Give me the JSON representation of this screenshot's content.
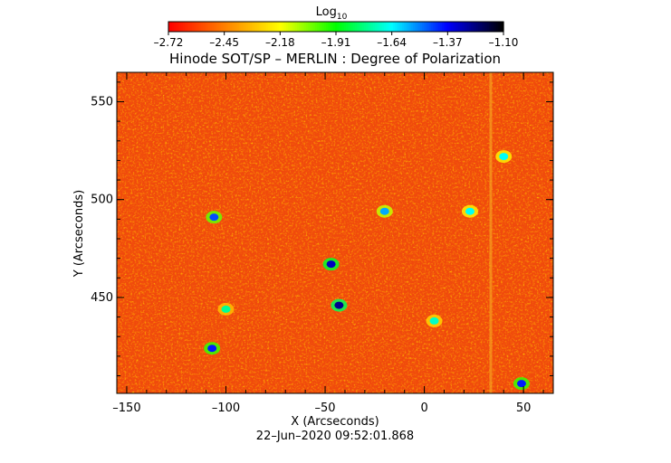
{
  "chart_data": {
    "type": "heatmap",
    "title": "Hinode SOT/SP – MERLIN : Degree of Polarization",
    "xlabel": "X (Arcseconds)",
    "ylabel": "Y (Arcseconds)",
    "timestamp": "22–Jun–2020 09:52:01.868",
    "xlim": [
      -155,
      65
    ],
    "ylim": [
      401,
      565
    ],
    "xticks": [
      {
        "value": -150,
        "label": "–150"
      },
      {
        "value": -100,
        "label": "–100"
      },
      {
        "value": -50,
        "label": "–50"
      },
      {
        "value": 0,
        "label": "0"
      },
      {
        "value": 50,
        "label": "50"
      }
    ],
    "yticks": [
      {
        "value": 450,
        "label": "450"
      },
      {
        "value": 500,
        "label": "500"
      },
      {
        "value": 550,
        "label": "550"
      }
    ],
    "colorbar": {
      "title_base": "Log",
      "title_sub": "10",
      "range": [
        -2.72,
        -1.1
      ],
      "ticks": [
        {
          "value": -2.72,
          "label": "–2.72"
        },
        {
          "value": -2.45,
          "label": "–2.45"
        },
        {
          "value": -2.18,
          "label": "–2.18"
        },
        {
          "value": -1.91,
          "label": "–1.91"
        },
        {
          "value": -1.64,
          "label": "–1.64"
        },
        {
          "value": -1.37,
          "label": "–1.37"
        },
        {
          "value": -1.1,
          "label": "–1.10"
        }
      ],
      "colormap": [
        "#ff0000",
        "#ff8000",
        "#ffff00",
        "#00ff00",
        "#00ffff",
        "#0000ff",
        "#000000"
      ]
    },
    "background_level": -2.6,
    "features": [
      {
        "x": -47,
        "y": 467,
        "value": -1.3,
        "label": "dark-blue patch"
      },
      {
        "x": -43,
        "y": 446,
        "value": -1.25,
        "label": "dark-blue patch"
      },
      {
        "x": -106,
        "y": 491,
        "value": -1.45,
        "label": "blue patch"
      },
      {
        "x": -107,
        "y": 424,
        "value": -1.4,
        "label": "blue patch"
      },
      {
        "x": -20,
        "y": 494,
        "value": -1.55,
        "label": "blue patch"
      },
      {
        "x": 23,
        "y": 494,
        "value": -1.65,
        "label": "green patch"
      },
      {
        "x": 40,
        "y": 522,
        "value": -1.65,
        "label": "green patch"
      },
      {
        "x": 49,
        "y": 406,
        "value": -1.4,
        "label": "blue patch"
      },
      {
        "x": -100,
        "y": 444,
        "value": -1.75,
        "label": "green patch"
      },
      {
        "x": 5,
        "y": 438,
        "value": -1.7,
        "label": "green patch"
      }
    ]
  }
}
